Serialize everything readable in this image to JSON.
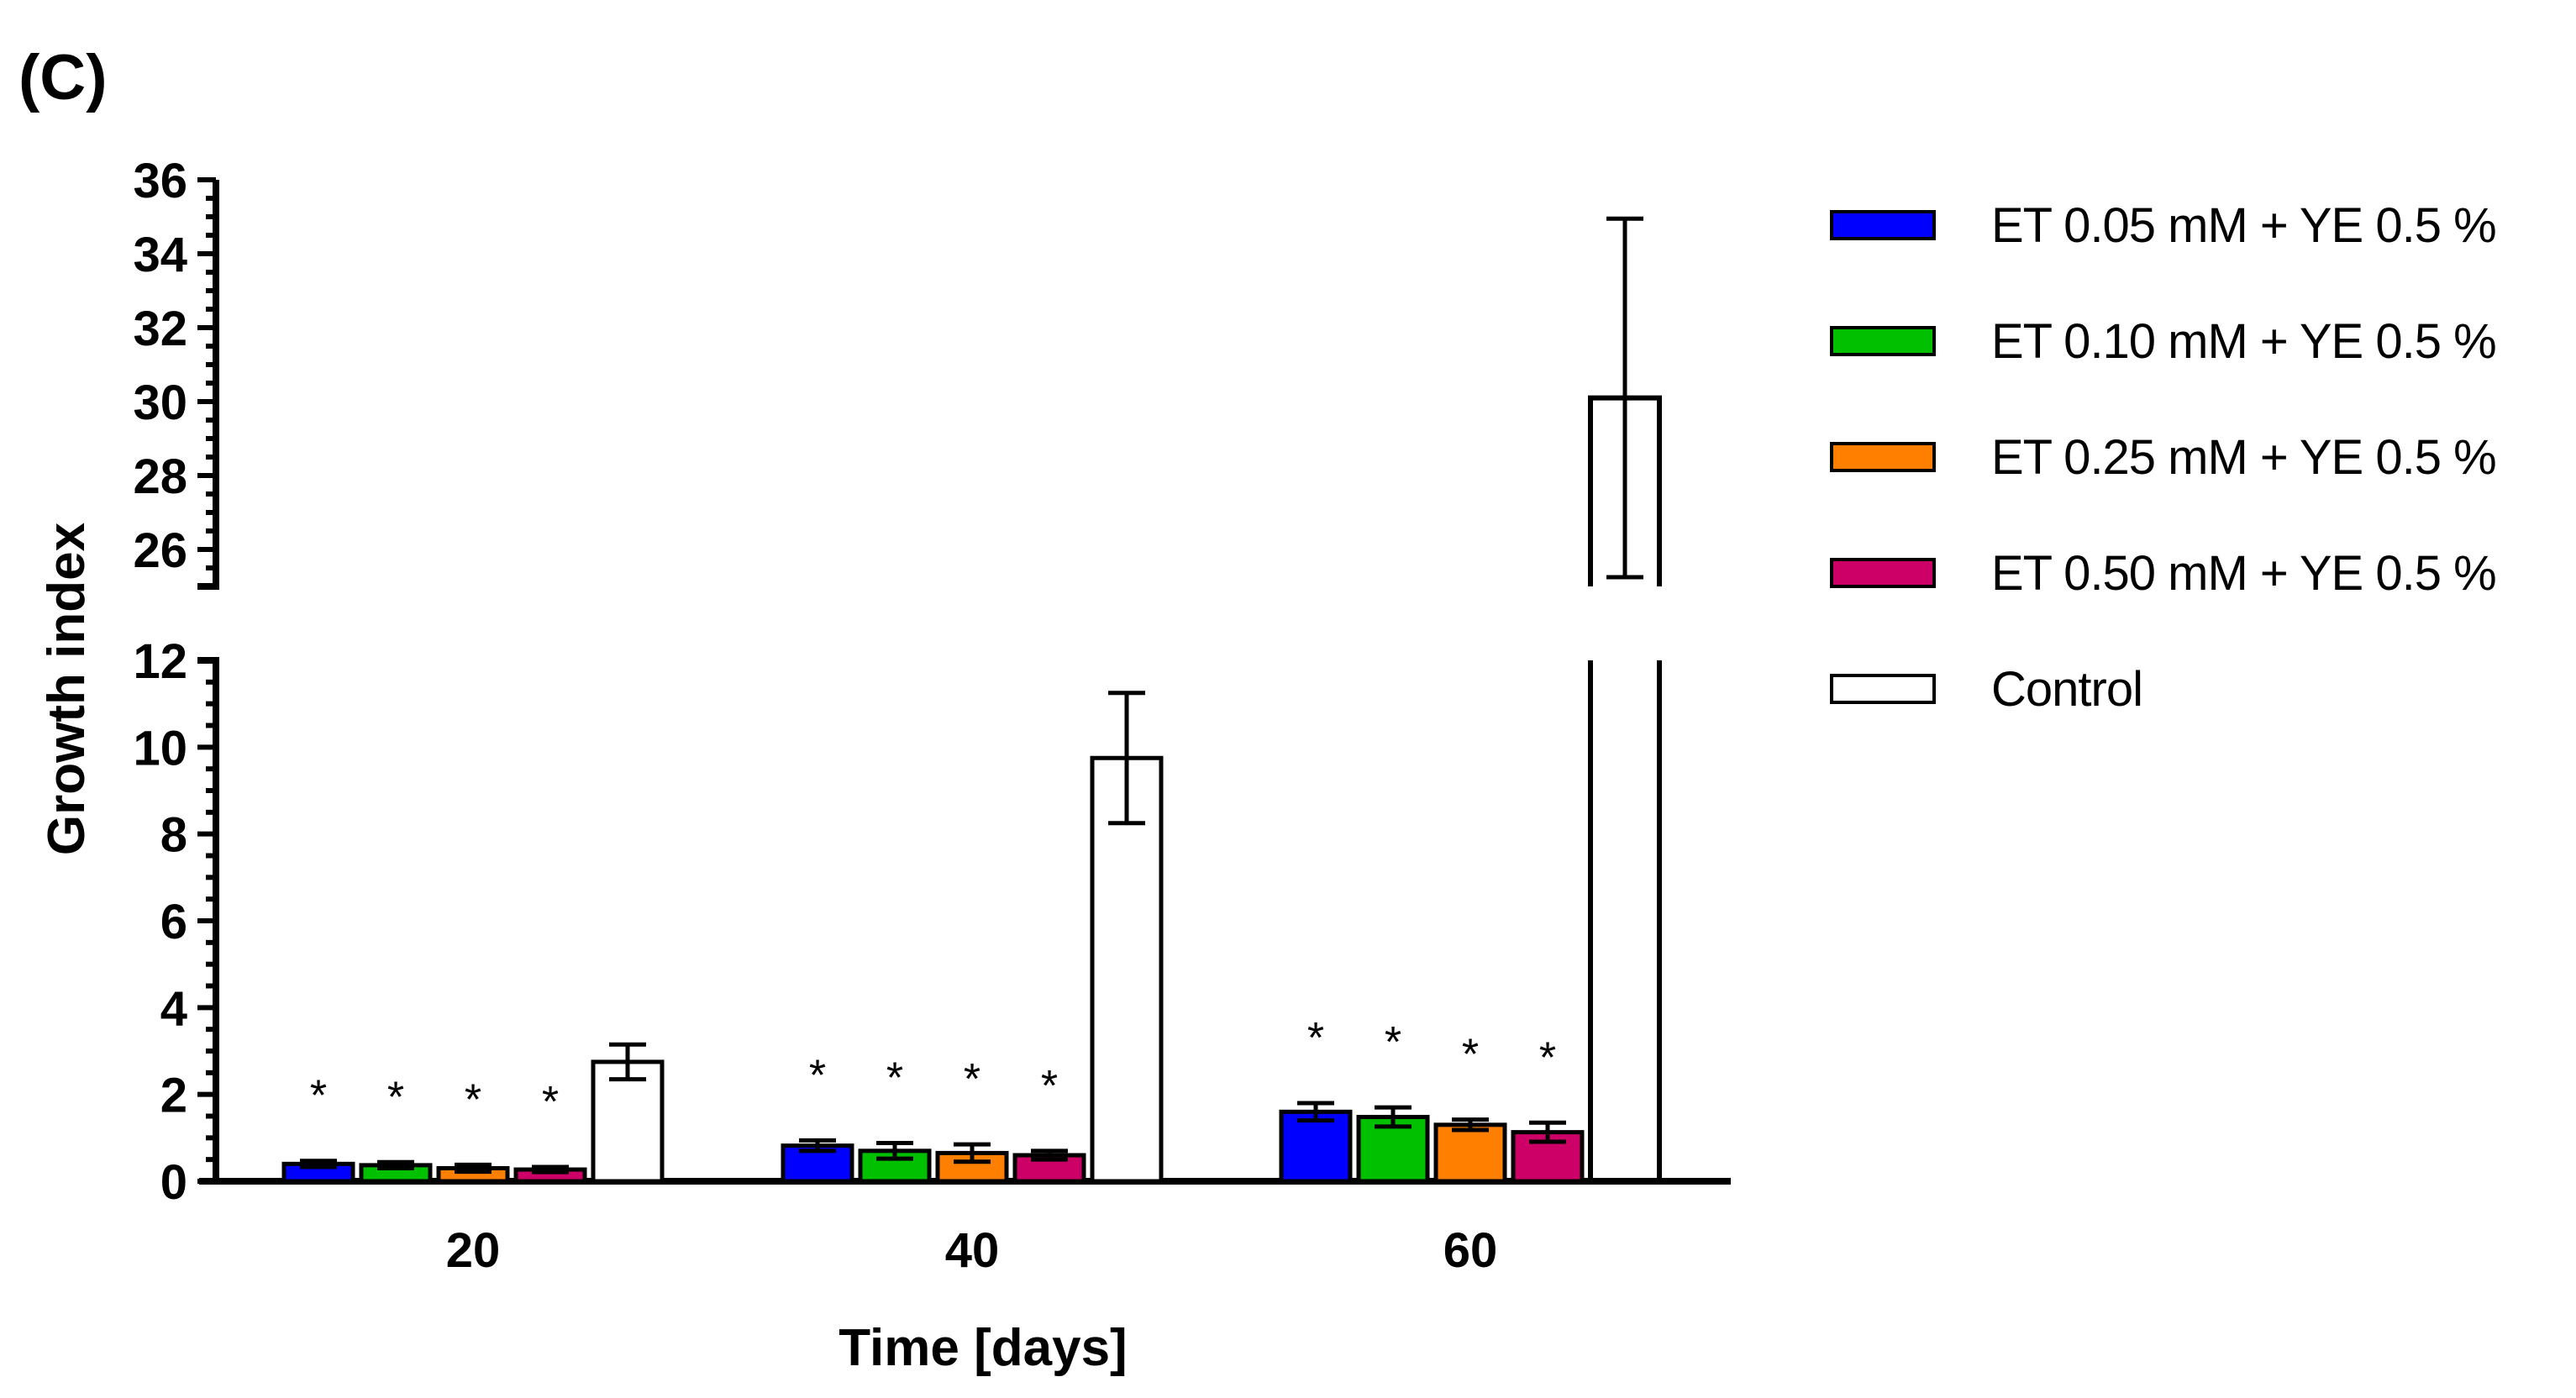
{
  "panel_label": "(C)",
  "chart_data": {
    "type": "bar",
    "title": "",
    "xlabel": "Time [days]",
    "ylabel": "Growth index",
    "categories": [
      "20",
      "40",
      "60"
    ],
    "y_axis_break": {
      "lower_range": [
        0,
        12
      ],
      "upper_range": [
        25,
        36
      ],
      "lower_ticks": [
        "0",
        "2",
        "4",
        "6",
        "8",
        "10",
        "12"
      ],
      "upper_ticks": [
        "26",
        "28",
        "30",
        "32",
        "34",
        "36"
      ]
    },
    "series": [
      {
        "name": "ET 0.05 mM + YE 0.5 %",
        "color": "#0000ff",
        "values": [
          0.4,
          0.82,
          1.6
        ],
        "errors": [
          0.07,
          0.12,
          0.2
        ],
        "significance": [
          "*",
          "*",
          "*"
        ]
      },
      {
        "name": "ET 0.10 mM + YE 0.5 %",
        "color": "#00c000",
        "values": [
          0.37,
          0.7,
          1.48
        ],
        "errors": [
          0.07,
          0.18,
          0.22
        ],
        "significance": [
          "*",
          "*",
          "*"
        ]
      },
      {
        "name": "ET 0.25 mM + YE 0.5 %",
        "color": "#ff8000",
        "values": [
          0.3,
          0.65,
          1.3
        ],
        "errors": [
          0.08,
          0.2,
          0.12
        ],
        "significance": [
          "*",
          "*",
          "*"
        ]
      },
      {
        "name": "ET 0.50 mM + YE 0.5 %",
        "color": "#cc0066",
        "values": [
          0.27,
          0.6,
          1.13
        ],
        "errors": [
          0.06,
          0.1,
          0.22
        ],
        "significance": [
          "*",
          "*",
          "*"
        ]
      },
      {
        "name": "Control",
        "color": "#ffffff",
        "values": [
          2.75,
          9.75,
          30.1
        ],
        "errors": [
          0.4,
          1.5,
          4.85
        ],
        "significance": [
          "",
          "",
          ""
        ]
      }
    ],
    "legend_position": "right"
  }
}
